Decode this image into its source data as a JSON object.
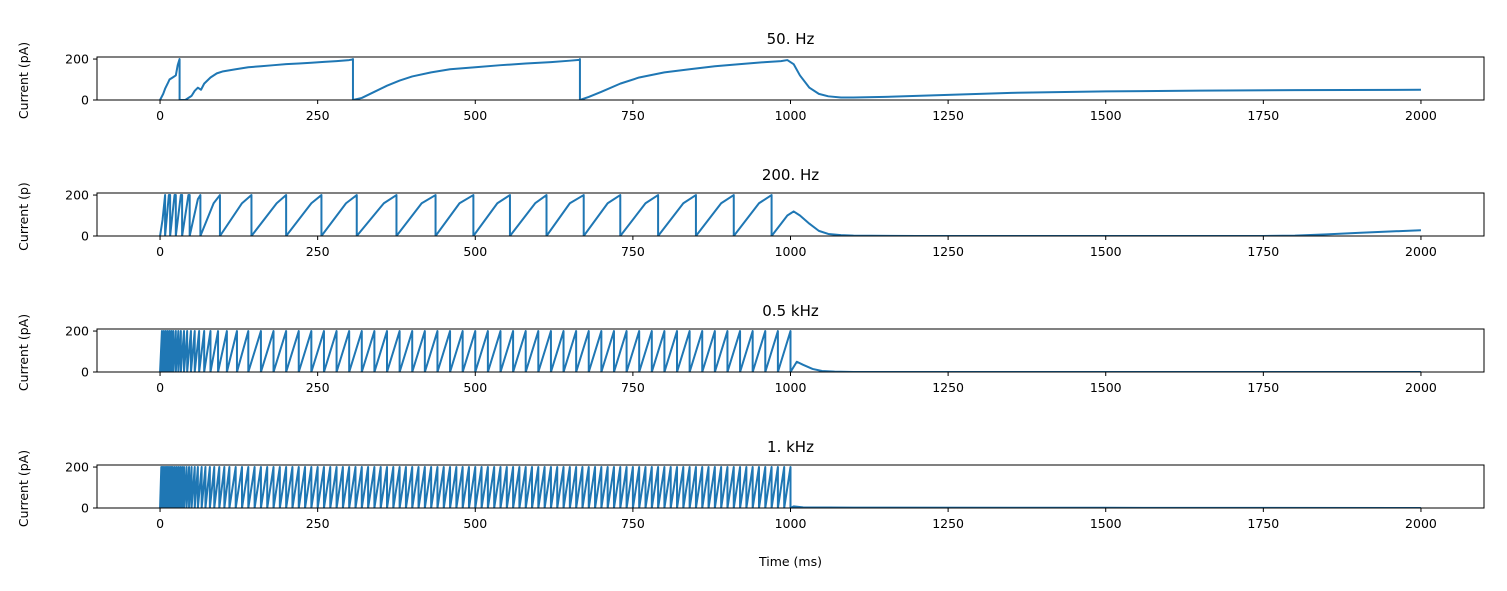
{
  "figure": {
    "xlabel": "Time (ms)"
  },
  "chart_data": [
    {
      "type": "line",
      "title": "50. Hz",
      "ylabel": "Current (pA)",
      "xlabel": "",
      "xlim": [
        -100,
        2100
      ],
      "ylim": [
        0,
        210
      ],
      "xticks": [
        0,
        250,
        500,
        750,
        1000,
        1250,
        1500,
        1750,
        2000
      ],
      "yticks": [
        0,
        200
      ],
      "color": "#1f77b4",
      "series": [
        {
          "x": [
            0,
            5,
            8,
            12,
            15,
            20,
            25,
            28,
            30,
            31,
            31,
            40,
            50,
            55,
            60,
            65,
            70,
            80,
            90,
            100,
            120,
            140,
            160,
            180,
            200,
            220,
            240,
            260,
            280,
            300,
            305,
            306,
            306,
            320,
            340,
            360,
            380,
            400,
            430,
            460,
            500,
            540,
            580,
            620,
            650,
            665,
            666,
            666,
            680,
            700,
            730,
            760,
            800,
            840,
            880,
            920,
            960,
            985,
            995,
            1005,
            1015,
            1030,
            1045,
            1060,
            1080,
            1100,
            1150,
            1250,
            1350,
            1500,
            1650,
            1800,
            2000
          ],
          "y": [
            0,
            30,
            55,
            80,
            100,
            110,
            120,
            170,
            190,
            200,
            0,
            0,
            20,
            45,
            60,
            50,
            80,
            110,
            130,
            140,
            150,
            160,
            165,
            170,
            175,
            178,
            182,
            186,
            190,
            195,
            198,
            200,
            0,
            10,
            40,
            70,
            95,
            115,
            135,
            150,
            160,
            170,
            178,
            185,
            192,
            196,
            200,
            0,
            15,
            40,
            80,
            110,
            135,
            150,
            165,
            175,
            185,
            190,
            195,
            175,
            120,
            60,
            30,
            18,
            12,
            12,
            15,
            25,
            35,
            42,
            46,
            48,
            50
          ]
        }
      ]
    },
    {
      "type": "line",
      "title": "200. Hz",
      "ylabel": "Current (p)",
      "xlabel": "",
      "xlim": [
        -100,
        2100
      ],
      "ylim": [
        0,
        210
      ],
      "xticks": [
        0,
        250,
        500,
        750,
        1000,
        1250,
        1500,
        1750,
        2000
      ],
      "yticks": [
        0,
        200
      ],
      "color": "#1f77b4",
      "series": [
        {
          "x": [
            0,
            4,
            8,
            8,
            14,
            16,
            16,
            23,
            25,
            25,
            33,
            35,
            35,
            45,
            47,
            47,
            60,
            64,
            64,
            85,
            95,
            95,
            130,
            145,
            145,
            185,
            200,
            200,
            240,
            256,
            256,
            295,
            312,
            312,
            355,
            375,
            375,
            415,
            437,
            437,
            475,
            497,
            497,
            535,
            555,
            555,
            595,
            613,
            613,
            650,
            672,
            672,
            710,
            730,
            730,
            770,
            790,
            790,
            830,
            850,
            850,
            890,
            910,
            910,
            950,
            970,
            970,
            985,
            995,
            1005,
            1015,
            1030,
            1045,
            1060,
            1080,
            1100,
            1200,
            1400,
            1600,
            1750,
            1800,
            1850,
            1900,
            1950,
            2000
          ],
          "y": [
            0,
            80,
            200,
            0,
            200,
            200,
            0,
            200,
            200,
            0,
            200,
            200,
            0,
            200,
            200,
            0,
            180,
            200,
            0,
            160,
            200,
            0,
            160,
            200,
            0,
            160,
            200,
            0,
            160,
            200,
            0,
            160,
            200,
            0,
            160,
            200,
            0,
            160,
            200,
            0,
            160,
            200,
            0,
            160,
            200,
            0,
            160,
            200,
            0,
            160,
            200,
            0,
            160,
            200,
            0,
            160,
            200,
            0,
            160,
            200,
            0,
            160,
            200,
            0,
            160,
            200,
            0,
            60,
            100,
            120,
            100,
            60,
            25,
            10,
            4,
            2,
            0,
            0,
            0,
            0,
            2,
            8,
            15,
            22,
            28
          ]
        }
      ]
    },
    {
      "type": "line",
      "title": "0.5 kHz",
      "ylabel": "Current (pA)",
      "xlabel": "",
      "xlim": [
        -100,
        2100
      ],
      "ylim": [
        0,
        210
      ],
      "xticks": [
        0,
        250,
        500,
        750,
        1000,
        1250,
        1500,
        1750,
        2000
      ],
      "yticks": [
        0,
        200
      ],
      "color": "#1f77b4",
      "series": [
        {
          "x": [
            0,
            3,
            3,
            6,
            6,
            9,
            9,
            12,
            12,
            15,
            15,
            18,
            18,
            21,
            21,
            25,
            25,
            29,
            29,
            33,
            33,
            38,
            38,
            43,
            43,
            49,
            49,
            55,
            55,
            62,
            62,
            70,
            70,
            80,
            80,
            92,
            92,
            106,
            106,
            122,
            122,
            140,
            140,
            160,
            160,
            180,
            180,
            200,
            200,
            220,
            220,
            240,
            240,
            260,
            260,
            280,
            280,
            300,
            300,
            320,
            320,
            340,
            340,
            360,
            360,
            380,
            380,
            400,
            400,
            420,
            420,
            440,
            440,
            460,
            460,
            480,
            480,
            500,
            500,
            520,
            520,
            540,
            540,
            560,
            560,
            580,
            580,
            600,
            600,
            620,
            620,
            640,
            640,
            660,
            660,
            680,
            680,
            700,
            700,
            720,
            720,
            740,
            740,
            760,
            760,
            780,
            780,
            800,
            800,
            820,
            820,
            840,
            840,
            860,
            860,
            880,
            880,
            900,
            900,
            920,
            920,
            940,
            940,
            960,
            960,
            980,
            980,
            1000,
            1000,
            1010,
            1020,
            1035,
            1050,
            1070,
            1100,
            1300,
            1600,
            2000
          ],
          "y": [
            0,
            200,
            0,
            200,
            0,
            200,
            0,
            200,
            0,
            200,
            0,
            200,
            0,
            200,
            0,
            200,
            0,
            200,
            0,
            200,
            0,
            200,
            0,
            200,
            0,
            200,
            0,
            200,
            0,
            200,
            0,
            200,
            0,
            200,
            0,
            200,
            0,
            200,
            0,
            200,
            0,
            200,
            0,
            200,
            0,
            200,
            0,
            200,
            0,
            200,
            0,
            200,
            0,
            200,
            0,
            200,
            0,
            200,
            0,
            200,
            0,
            200,
            0,
            200,
            0,
            200,
            0,
            200,
            0,
            200,
            0,
            200,
            0,
            200,
            0,
            200,
            0,
            200,
            0,
            200,
            0,
            200,
            0,
            200,
            0,
            200,
            0,
            200,
            0,
            200,
            0,
            200,
            0,
            200,
            0,
            200,
            0,
            200,
            0,
            200,
            0,
            200,
            0,
            200,
            0,
            200,
            0,
            200,
            0,
            200,
            0,
            200,
            0,
            200,
            0,
            200,
            0,
            200,
            0,
            200,
            0,
            200,
            0,
            200,
            0,
            200,
            0,
            200,
            0,
            50,
            35,
            15,
            5,
            2,
            0,
            0,
            0,
            0
          ]
        }
      ]
    },
    {
      "type": "line",
      "title": "1. kHz",
      "ylabel": "Current (pA)",
      "xlabel": "Time (ms)",
      "xlim": [
        -100,
        2100
      ],
      "ylim": [
        0,
        210
      ],
      "xticks": [
        0,
        250,
        500,
        750,
        1000,
        1250,
        1500,
        1750,
        2000
      ],
      "yticks": [
        0,
        200
      ],
      "color": "#1f77b4",
      "series": [
        {
          "x": [
            0,
            2,
            2,
            4,
            4,
            6,
            6,
            8,
            8,
            10,
            10,
            12,
            12,
            14,
            14,
            16,
            16,
            18,
            18,
            20,
            20,
            23,
            23,
            26,
            26,
            29,
            29,
            32,
            32,
            35,
            35,
            38,
            38,
            42,
            42,
            46,
            46,
            50,
            50,
            55,
            55,
            60,
            60,
            66,
            66,
            72,
            72,
            79,
            79,
            86,
            86,
            94,
            94,
            102,
            102,
            110,
            110,
            120,
            120,
            130,
            130,
            140,
            140,
            150,
            150,
            160,
            160,
            170,
            170,
            180,
            180,
            190,
            190,
            200,
            200,
            210,
            210,
            220,
            220,
            230,
            230,
            240,
            240,
            250,
            250,
            260,
            260,
            270,
            270,
            280,
            280,
            290,
            290,
            300,
            300,
            310,
            310,
            320,
            320,
            330,
            330,
            340,
            340,
            350,
            350,
            360,
            360,
            370,
            370,
            380,
            380,
            390,
            390,
            400,
            400,
            410,
            410,
            420,
            420,
            430,
            430,
            440,
            440,
            450,
            450,
            460,
            460,
            470,
            470,
            480,
            480,
            490,
            490,
            500,
            500,
            510,
            510,
            520,
            520,
            530,
            530,
            540,
            540,
            550,
            550,
            560,
            560,
            570,
            570,
            580,
            580,
            590,
            590,
            600,
            600,
            610,
            610,
            620,
            620,
            630,
            630,
            640,
            640,
            650,
            650,
            660,
            660,
            670,
            670,
            680,
            680,
            690,
            690,
            700,
            700,
            710,
            710,
            720,
            720,
            730,
            730,
            740,
            740,
            750,
            750,
            760,
            760,
            770,
            770,
            780,
            780,
            790,
            790,
            800,
            800,
            810,
            810,
            820,
            820,
            830,
            830,
            840,
            840,
            850,
            850,
            860,
            860,
            870,
            870,
            880,
            880,
            890,
            890,
            900,
            900,
            910,
            910,
            920,
            920,
            930,
            930,
            940,
            940,
            950,
            950,
            960,
            960,
            970,
            970,
            980,
            980,
            990,
            990,
            1000,
            1000,
            1005,
            1020,
            1100,
            1500,
            2000
          ],
          "y": [
            0,
            200,
            0,
            200,
            0,
            200,
            0,
            200,
            0,
            200,
            0,
            200,
            0,
            200,
            0,
            200,
            0,
            200,
            0,
            200,
            0,
            200,
            0,
            200,
            0,
            200,
            0,
            200,
            0,
            200,
            0,
            200,
            0,
            200,
            0,
            200,
            0,
            200,
            0,
            200,
            0,
            200,
            0,
            200,
            0,
            200,
            0,
            200,
            0,
            200,
            0,
            200,
            0,
            200,
            0,
            200,
            0,
            200,
            0,
            200,
            0,
            200,
            0,
            200,
            0,
            200,
            0,
            200,
            0,
            200,
            0,
            200,
            0,
            200,
            0,
            200,
            0,
            200,
            0,
            200,
            0,
            200,
            0,
            200,
            0,
            200,
            0,
            200,
            0,
            200,
            0,
            200,
            0,
            200,
            0,
            200,
            0,
            200,
            0,
            200,
            0,
            200,
            0,
            200,
            0,
            200,
            0,
            200,
            0,
            200,
            0,
            200,
            0,
            200,
            0,
            200,
            0,
            200,
            0,
            200,
            0,
            200,
            0,
            200,
            0,
            200,
            0,
            200,
            0,
            200,
            0,
            200,
            0,
            200,
            0,
            200,
            0,
            200,
            0,
            200,
            0,
            200,
            0,
            200,
            0,
            200,
            0,
            200,
            0,
            200,
            0,
            200,
            0,
            200,
            0,
            200,
            0,
            200,
            0,
            200,
            0,
            200,
            0,
            200,
            0,
            200,
            0,
            200,
            0,
            200,
            0,
            200,
            0,
            200,
            0,
            200,
            0,
            200,
            0,
            200,
            0,
            200,
            0,
            200,
            0,
            200,
            0,
            200,
            0,
            200,
            0,
            200,
            0,
            200,
            0,
            200,
            0,
            200,
            0,
            200,
            0,
            200,
            0,
            200,
            0,
            200,
            0,
            200,
            0,
            200,
            0,
            200,
            0,
            200,
            0,
            200,
            0,
            200,
            0,
            200,
            0,
            200,
            0,
            200,
            0,
            200,
            0,
            200,
            0,
            200,
            0,
            200,
            0,
            200,
            0,
            8,
            3,
            2,
            1,
            0
          ]
        }
      ]
    }
  ]
}
